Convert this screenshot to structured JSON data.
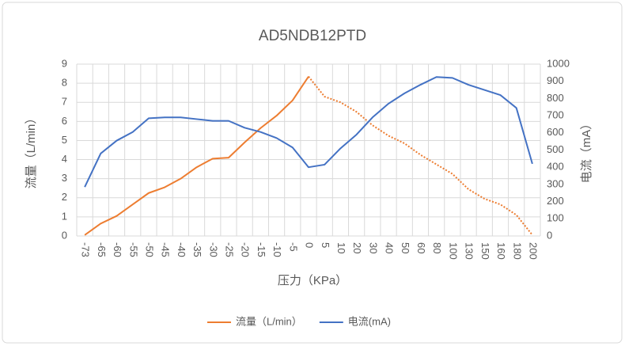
{
  "chart_data": {
    "type": "line",
    "title": "AD5NDB12PTD",
    "x_label": "压力（KPa）",
    "y_label": "流量（L/min）",
    "y2_label": "电流（mA）",
    "categories": [
      "-73",
      "-65",
      "-60",
      "-55",
      "-50",
      "-45",
      "-40",
      "-35",
      "-30",
      "-25",
      "-20",
      "-15",
      "-10",
      "-5",
      "0",
      "5",
      "10",
      "20",
      "30",
      "40",
      "50",
      "60",
      "80",
      "100",
      "130",
      "150",
      "160",
      "180",
      "200"
    ],
    "series": [
      {
        "name": "流量（L/min）",
        "color": "#ed7d31",
        "dotted_from": 14,
        "values": [
          0.05,
          0.65,
          1.05,
          1.65,
          2.25,
          2.55,
          3.0,
          3.6,
          4.05,
          4.1,
          4.9,
          5.65,
          6.3,
          7.1,
          8.35,
          7.3,
          7.0,
          6.5,
          5.8,
          5.25,
          4.85,
          4.25,
          3.75,
          3.25,
          2.45,
          1.95,
          1.65,
          1.1,
          0.05
        ]
      },
      {
        "name": "电流(mA)",
        "color": "#4472c4",
        "axis": "y2",
        "values": [
          285,
          480,
          555,
          605,
          685,
          690,
          690,
          680,
          670,
          670,
          630,
          605,
          570,
          515,
          400,
          415,
          510,
          590,
          690,
          770,
          830,
          880,
          925,
          920,
          880,
          850,
          820,
          745,
          420
        ]
      }
    ],
    "ylim": [
      0,
      9
    ],
    "yticks": [
      0,
      1,
      2,
      3,
      4,
      5,
      6,
      7,
      8,
      9
    ],
    "y2lim": [
      0,
      1000
    ],
    "y2ticks": [
      0,
      100,
      200,
      300,
      400,
      500,
      600,
      700,
      800,
      900,
      1000
    ],
    "grid": true,
    "legend": "bottom"
  }
}
